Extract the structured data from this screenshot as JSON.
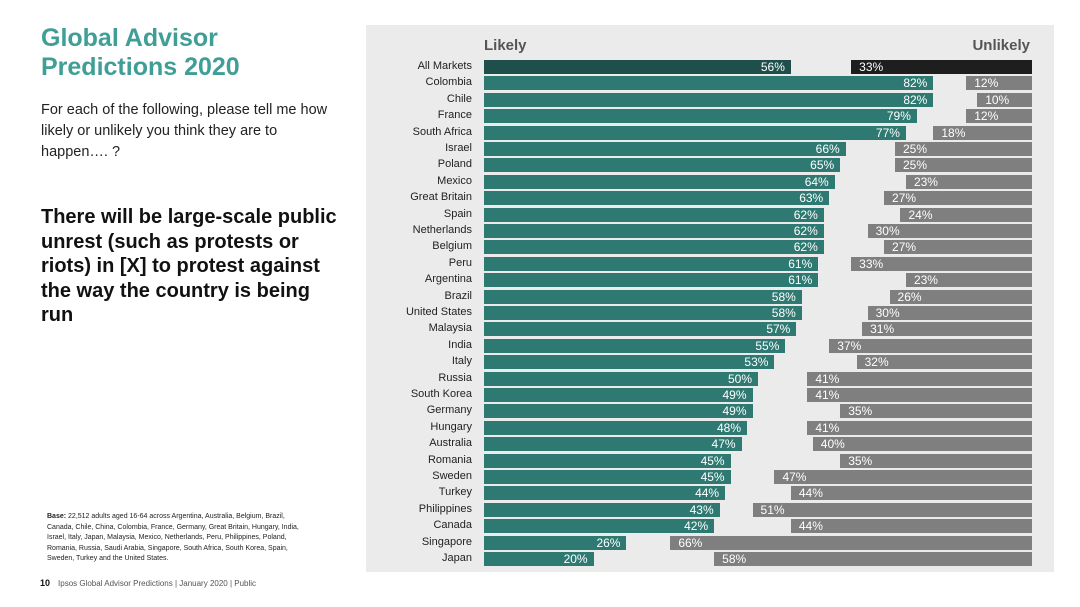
{
  "title": "Global Advisor Predictions 2020",
  "question": "For each of the following, please tell me how likely or unlikely you think they are to happen…. ?",
  "statement": "There will be large-scale public unrest (such as protests or riots) in [X] to protest against the way the country is being run",
  "base_label": "Base:",
  "base_text": "22,512 adults aged 16-64 across Argentina, Australia, Belgium, Brazil, Canada, Chile, China, Colombia, France, Germany, Great Britain, Hungary, India, Israel, Italy, Japan, Malaysia, Mexico, Netherlands, Peru, Philippines, Poland, Romania, Russia, Saudi Arabia, Singapore, South Africa, South Korea, Spain, Sweden, Turkey and the United States.",
  "page_number": "10",
  "footer": "Ipsos Global Advisor Predictions | January 2020 | Public",
  "colors": {
    "likely": "#2e7a73",
    "likely_total": "#1f4f4b",
    "unlikely": "#7f7f7f",
    "unlikely_total": "#1e1e1e",
    "title": "#3f9e96"
  },
  "chart_data": {
    "type": "bar",
    "legend": [
      "Likely",
      "Unlikely"
    ],
    "categories": [
      "All Markets",
      "Colombia",
      "Chile",
      "France",
      "South Africa",
      "Israel",
      "Poland",
      "Mexico",
      "Great Britain",
      "Spain",
      "Netherlands",
      "Belgium",
      "Peru",
      "Argentina",
      "Brazil",
      "United States",
      "Malaysia",
      "India",
      "Italy",
      "Russia",
      "South Korea",
      "Germany",
      "Hungary",
      "Australia",
      "Romania",
      "Sweden",
      "Turkey",
      "Philippines",
      "Canada",
      "Singapore",
      "Japan"
    ],
    "series": [
      {
        "name": "Likely",
        "values": [
          56,
          82,
          82,
          79,
          77,
          66,
          65,
          64,
          63,
          62,
          62,
          62,
          61,
          61,
          58,
          58,
          57,
          55,
          53,
          50,
          49,
          49,
          48,
          47,
          45,
          45,
          44,
          43,
          42,
          26,
          20
        ]
      },
      {
        "name": "Unlikely",
        "values": [
          33,
          12,
          10,
          12,
          18,
          25,
          25,
          23,
          27,
          24,
          30,
          27,
          33,
          23,
          26,
          30,
          31,
          37,
          32,
          41,
          41,
          35,
          41,
          40,
          35,
          47,
          44,
          51,
          44,
          66,
          58
        ]
      }
    ],
    "xlim": [
      0,
      100
    ]
  }
}
